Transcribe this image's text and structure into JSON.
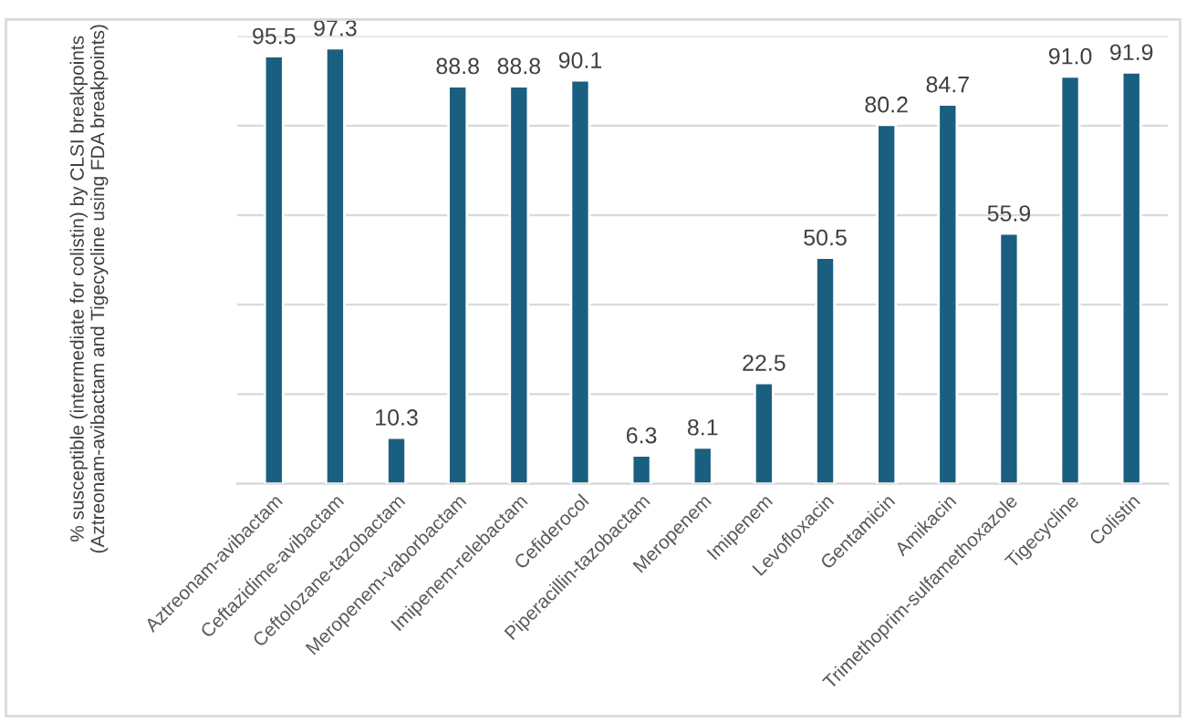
{
  "chart_data": {
    "type": "bar",
    "ylabel": "% susceptible (intermediate for colistin) by CLSI breakpoints (Aztreonam-avibactam and Tigecycline using FDA breakpoints)",
    "categories": [
      "Aztreonam-avibactam",
      "Ceftazidime-avibactam",
      "Ceftolozane-tazobactam",
      "Meropenem-vaborbactam",
      "Imipenem-relebactam",
      "Cefiderocol",
      "Piperacillin-tazobactam",
      "Meropenem",
      "Imipenem",
      "Levofloxacin",
      "Gentamicin",
      "Amikacin",
      "Trimethoprim-sulfamethoxazole",
      "Tigecycline",
      "Colistin"
    ],
    "values": [
      95.5,
      97.3,
      10.3,
      88.8,
      88.8,
      90.1,
      6.3,
      8.1,
      22.5,
      50.5,
      80.2,
      84.7,
      55.9,
      91.0,
      91.9
    ],
    "value_labels": [
      "95.5",
      "97.3",
      "10.3",
      "88.8",
      "88.8",
      "90.1",
      "6.3",
      "8.1",
      "22.5",
      "50.5",
      "80.2",
      "84.7",
      "55.9",
      "91.0",
      "91.9"
    ],
    "color": "#1b5f80",
    "ylim": [
      0,
      100
    ],
    "yticks": [
      {
        "value": 0,
        "label": null
      },
      {
        "value": 20,
        "label": null
      },
      {
        "value": 40,
        "label": null
      },
      {
        "value": 60,
        "label": null
      },
      {
        "value": 80,
        "label": null
      },
      {
        "value": 100,
        "label": null
      }
    ],
    "tick_labels": "x",
    "grid": "y"
  }
}
